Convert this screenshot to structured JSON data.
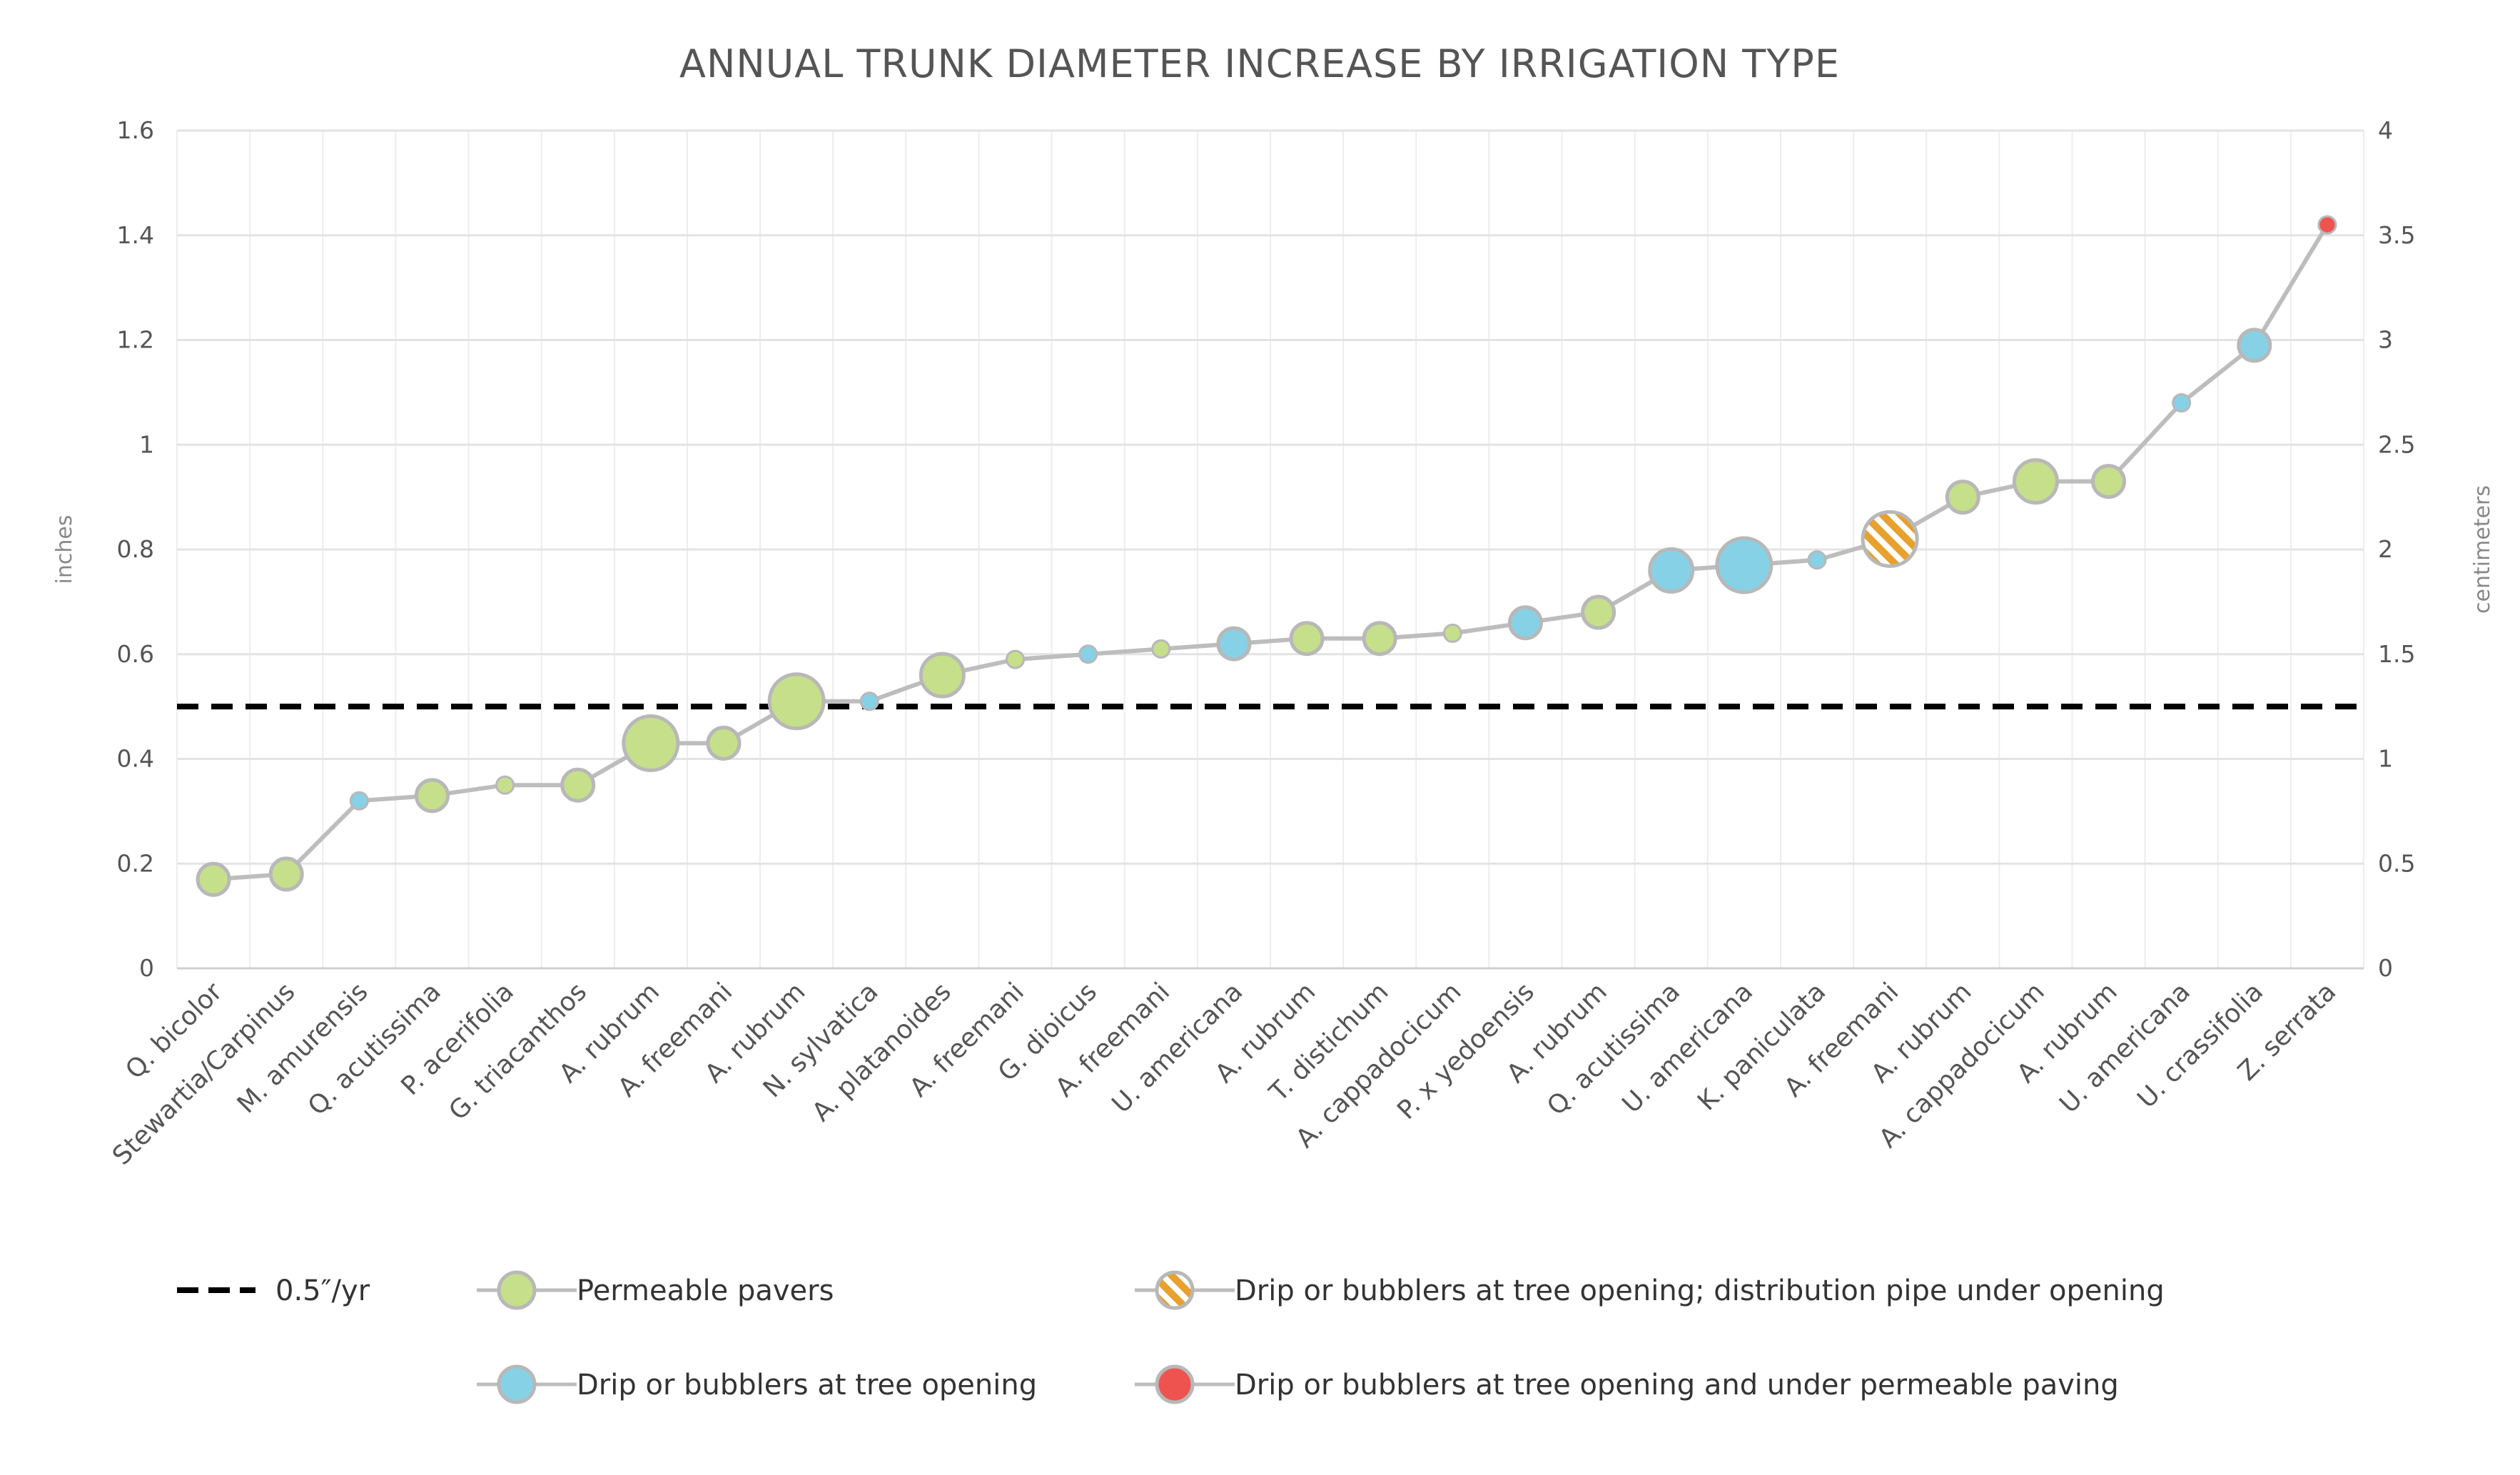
{
  "chart_data": {
    "type": "line",
    "title": "ANNUAL TRUNK DIAMETER INCREASE BY IRRIGATION TYPE",
    "ylabel": "inches",
    "y2label": "centimeters",
    "ylim": [
      0,
      1.6
    ],
    "yticks": [
      0,
      0.2,
      0.4,
      0.6,
      0.8,
      1,
      1.2,
      1.4,
      1.6
    ],
    "ytick_labels": [
      "0",
      "0.2",
      "0.4",
      "0.6",
      "0.8",
      "1",
      "1.2",
      "1.4",
      "1.6"
    ],
    "y2lim": [
      0,
      4
    ],
    "y2ticks": [
      0,
      0.5,
      1,
      1.5,
      2,
      2.5,
      3,
      3.5,
      4
    ],
    "y2tick_labels": [
      "0",
      "0.5",
      "1",
      "1.5",
      "2",
      "2.5",
      "3",
      "3.5",
      "4"
    ],
    "grid": true,
    "reference_line": {
      "value": 0.5,
      "label": "0.5\"/yr",
      "style": "dashed",
      "color": "#000000"
    },
    "categories": [
      "Q. bicolor",
      "Stewartia/Carpinus",
      "M. amurensis",
      "Q. acutissima",
      "P. acerifolia",
      "G. triacanthos",
      "A. rubrum",
      "A. freemani",
      "A. rubrum",
      "N. sylvatica",
      "A. platanoides",
      "A. freemani",
      "G. dioicus",
      "A. freemani",
      "U. americana",
      "A. rubrum",
      "T. distichum",
      "A. cappadocicum",
      "P. x yedoensis",
      "A. rubrum",
      "Q. acutissima",
      "U. americana",
      "K. paniculata",
      "A. freemani",
      "A. rubrum",
      "A. cappadocicum",
      "A. rubrum",
      "U. americana",
      "U. crassifolia",
      "Z. serrata"
    ],
    "values": [
      0.17,
      0.18,
      0.32,
      0.33,
      0.35,
      0.35,
      0.43,
      0.43,
      0.51,
      0.51,
      0.56,
      0.59,
      0.6,
      0.61,
      0.62,
      0.63,
      0.63,
      0.64,
      0.66,
      0.68,
      0.76,
      0.77,
      0.78,
      0.82,
      0.9,
      0.93,
      0.93,
      1.08,
      1.19,
      1.42
    ],
    "irrigation": [
      "pavers",
      "pavers",
      "drip",
      "pavers",
      "pavers",
      "pavers",
      "pavers",
      "pavers",
      "pavers",
      "drip",
      "pavers",
      "pavers",
      "drip",
      "pavers",
      "drip",
      "pavers",
      "pavers",
      "pavers",
      "drip",
      "pavers",
      "drip",
      "drip",
      "drip",
      "drip_pipe",
      "pavers",
      "pavers",
      "pavers",
      "drip",
      "drip",
      "drip_paving"
    ],
    "marker_size": [
      2,
      2,
      1,
      2,
      1,
      2,
      4,
      2,
      4,
      1,
      3,
      1,
      1,
      1,
      2,
      2,
      2,
      1,
      2,
      2,
      3,
      4,
      1,
      4,
      2,
      3,
      2,
      1,
      2,
      1
    ],
    "line_color": "#bdbdbd",
    "legend": [
      {
        "key": "ref",
        "label": "0.5″/yr",
        "style": "dash"
      },
      {
        "key": "pavers",
        "label": "Permeable pavers",
        "color": "#c6df8a"
      },
      {
        "key": "drip_pipe",
        "label": "Drip or bubblers at tree opening; distribution pipe under opening",
        "color": "#e8a02e",
        "pattern": "hatch"
      },
      {
        "key": "drip",
        "label": "Drip or bubblers at tree opening",
        "color": "#87d1e6"
      },
      {
        "key": "drip_paving",
        "label": "Drip or bubblers at tree opening and under permeable paving",
        "color": "#ef5350"
      }
    ],
    "legend_position": "bottom"
  }
}
